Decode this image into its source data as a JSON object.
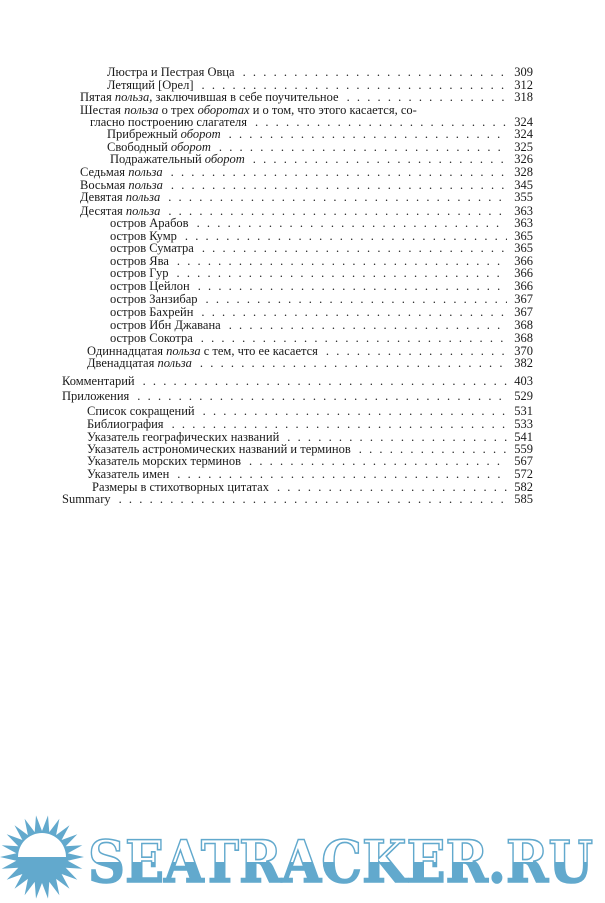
{
  "toc": [
    {
      "level": 3,
      "parts": [
        {
          "t": "Люстра и Пестрая Овца"
        }
      ],
      "page": "309"
    },
    {
      "level": 3,
      "parts": [
        {
          "t": "Летящий [Орел]"
        }
      ],
      "page": "312"
    },
    {
      "level": 1,
      "parts": [
        {
          "t": "Пятая "
        },
        {
          "t": "польза,",
          "i": true
        },
        {
          "t": " заключившая в себе поучительное"
        }
      ],
      "page": "318"
    },
    {
      "level": 1,
      "parts": [
        {
          "t": "Шестая "
        },
        {
          "t": "польза",
          "i": true
        },
        {
          "t": " о трех "
        },
        {
          "t": "оборотах",
          "i": true
        },
        {
          "t": " и о том, что этого касается, со-"
        }
      ],
      "page": ""
    },
    {
      "level": 2,
      "parts": [
        {
          "t": "гласно построению слагателя"
        }
      ],
      "page": "324"
    },
    {
      "level": 3,
      "parts": [
        {
          "t": "Прибрежный "
        },
        {
          "t": "оборот",
          "i": true
        }
      ],
      "page": "324"
    },
    {
      "level": 3,
      "parts": [
        {
          "t": "Свободный "
        },
        {
          "t": "оборот",
          "i": true
        }
      ],
      "page": "325"
    },
    {
      "level": 4,
      "parts": [
        {
          "t": "Подражательный "
        },
        {
          "t": "оборот",
          "i": true
        }
      ],
      "page": "326"
    },
    {
      "level": 1,
      "parts": [
        {
          "t": "Седьмая "
        },
        {
          "t": "польза",
          "i": true
        }
      ],
      "page": "328"
    },
    {
      "level": 1,
      "parts": [
        {
          "t": "Восьмая "
        },
        {
          "t": "польза",
          "i": true
        }
      ],
      "page": "345"
    },
    {
      "level": 1,
      "parts": [
        {
          "t": "Девятая "
        },
        {
          "t": "польза",
          "i": true
        }
      ],
      "page": "355"
    },
    {
      "level": 1,
      "parts": [
        {
          "t": "Десятая "
        },
        {
          "t": "польза",
          "i": true
        }
      ],
      "page": "363"
    },
    {
      "level": 4,
      "parts": [
        {
          "t": "остров Арабов"
        }
      ],
      "page": "363"
    },
    {
      "level": 4,
      "parts": [
        {
          "t": "остров Кумр"
        }
      ],
      "page": "365"
    },
    {
      "level": 4,
      "parts": [
        {
          "t": "остров Суматра"
        }
      ],
      "page": "365"
    },
    {
      "level": 4,
      "parts": [
        {
          "t": "остров Ява"
        }
      ],
      "page": "366"
    },
    {
      "level": 4,
      "parts": [
        {
          "t": "остров Гур"
        }
      ],
      "page": "366"
    },
    {
      "level": 4,
      "parts": [
        {
          "t": "остров Цейлон"
        }
      ],
      "page": "366"
    },
    {
      "level": 4,
      "parts": [
        {
          "t": "остров Занзибар"
        }
      ],
      "page": "367"
    },
    {
      "level": 4,
      "parts": [
        {
          "t": "остров Бахрейн"
        }
      ],
      "page": "367"
    },
    {
      "level": 4,
      "parts": [
        {
          "t": "остров Ибн Джавана"
        }
      ],
      "page": "368"
    },
    {
      "level": 4,
      "parts": [
        {
          "t": "остров Сокотра"
        }
      ],
      "page": "368"
    },
    {
      "level": 5,
      "parts": [
        {
          "t": "Одиннадцатая "
        },
        {
          "t": "польза",
          "i": true
        },
        {
          "t": " с тем, что ее касается"
        }
      ],
      "page": "370"
    },
    {
      "level": 5,
      "parts": [
        {
          "t": "Двенадцатая "
        },
        {
          "t": "польза",
          "i": true
        }
      ],
      "page": "382"
    },
    {
      "level": 0,
      "parts": [
        {
          "t": "Комментарий"
        }
      ],
      "page": "403"
    },
    {
      "level": 0,
      "parts": [
        {
          "t": "Приложения"
        }
      ],
      "page": "529"
    },
    {
      "level": 5,
      "parts": [
        {
          "t": "Список сокращений"
        }
      ],
      "page": "531"
    },
    {
      "level": 5,
      "parts": [
        {
          "t": "Библиография"
        }
      ],
      "page": "533"
    },
    {
      "level": 5,
      "parts": [
        {
          "t": "Указатель географических названий"
        }
      ],
      "page": "541"
    },
    {
      "level": 5,
      "parts": [
        {
          "t": "Указатель астрономических названий и терминов"
        }
      ],
      "page": "559"
    },
    {
      "level": 5,
      "parts": [
        {
          "t": "Указатель морских терминов"
        }
      ],
      "page": "567"
    },
    {
      "level": 5,
      "parts": [
        {
          "t": "Указатель имен"
        }
      ],
      "page": "572"
    },
    {
      "level": 6,
      "parts": [
        {
          "t": "Размеры в стихотворных цитатах"
        }
      ],
      "page": "582"
    },
    {
      "level": 0,
      "parts": [
        {
          "t": "Summary"
        }
      ],
      "page": "585"
    }
  ],
  "watermark": {
    "text": "SEATRACKER.RU",
    "color": "#62a9cd",
    "icon": "sun-icon"
  }
}
